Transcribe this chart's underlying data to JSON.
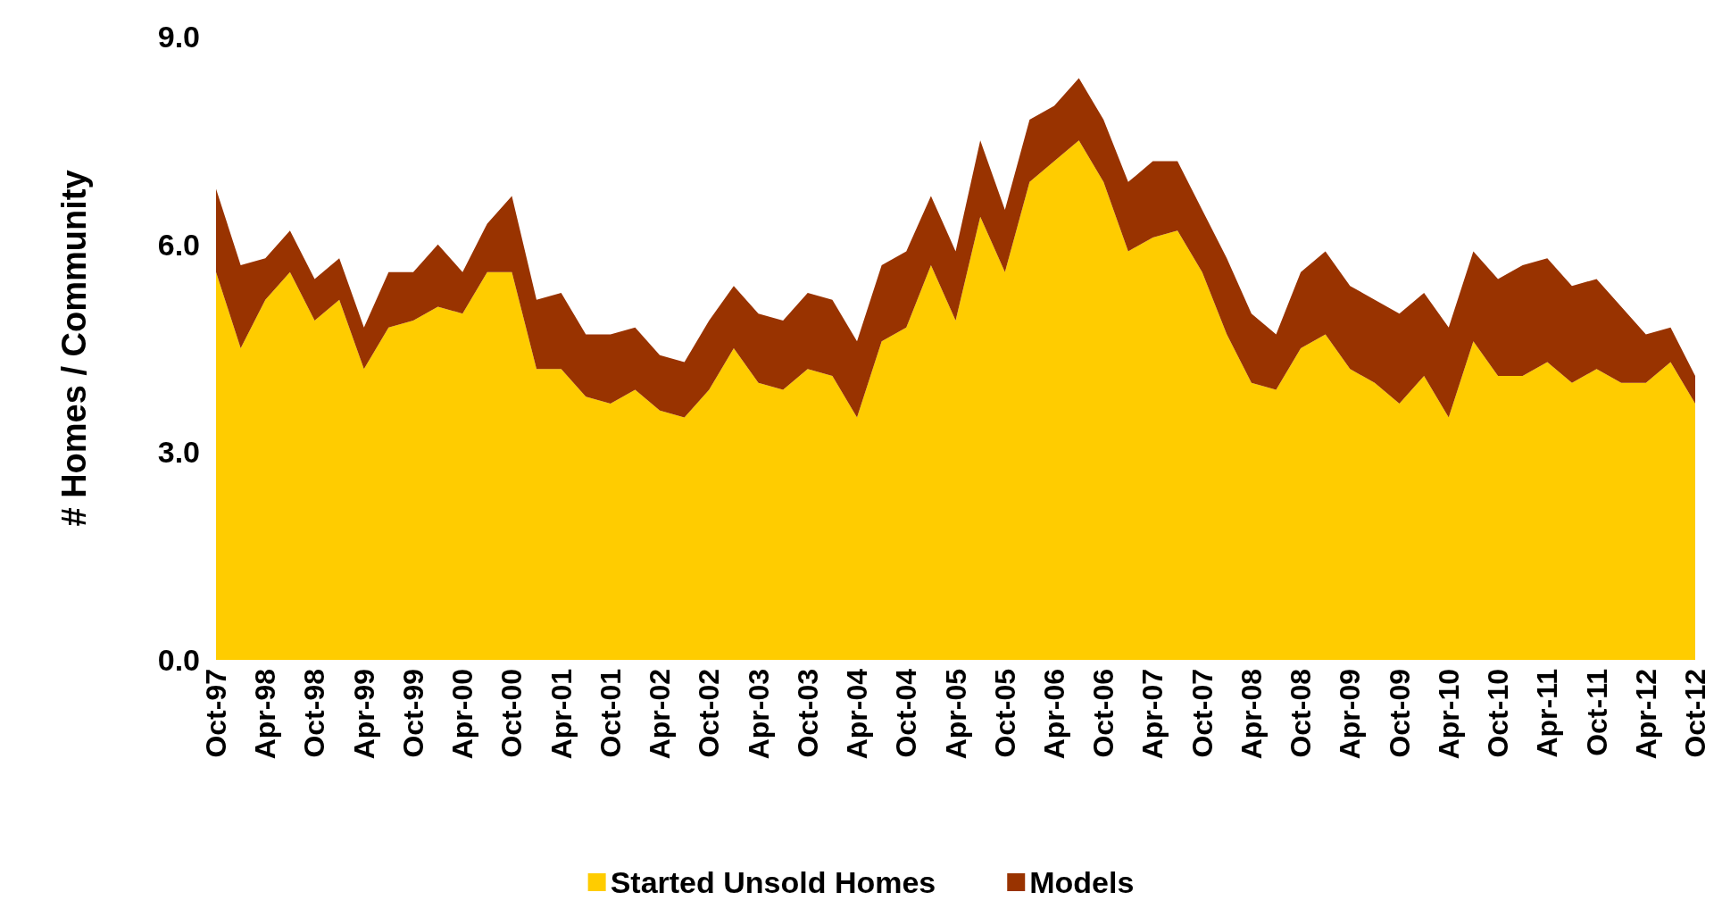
{
  "chart_data": {
    "type": "area",
    "stacked": true,
    "ylabel": "# Homes / Community",
    "ylim": [
      0,
      9
    ],
    "yticks": [
      {
        "value": 0,
        "label": "0.0"
      },
      {
        "value": 3,
        "label": "3.0"
      },
      {
        "value": 6,
        "label": "6.0"
      },
      {
        "value": 9,
        "label": "9.0"
      }
    ],
    "grid": false,
    "legend": "bottom",
    "categories": [
      "Oct-97",
      null,
      "Apr-98",
      null,
      "Oct-98",
      null,
      "Apr-99",
      null,
      "Oct-99",
      null,
      "Apr-00",
      null,
      "Oct-00",
      null,
      "Apr-01",
      null,
      "Oct-01",
      null,
      "Apr-02",
      null,
      "Oct-02",
      null,
      "Apr-03",
      null,
      "Oct-03",
      null,
      "Apr-04",
      null,
      "Oct-04",
      null,
      "Apr-05",
      null,
      "Oct-05",
      null,
      "Apr-06",
      null,
      "Oct-06",
      null,
      "Apr-07",
      null,
      "Oct-07",
      null,
      "Apr-08",
      null,
      "Oct-08",
      null,
      "Apr-09",
      null,
      "Oct-09",
      null,
      "Apr-10",
      null,
      "Oct-10",
      null,
      "Apr-11",
      null,
      "Oct-11",
      null,
      "Apr-12",
      null,
      "Oct-12"
    ],
    "series": [
      {
        "name": "Started Unsold Homes",
        "color": "#ffcc00",
        "values": [
          5.6,
          4.5,
          5.2,
          5.6,
          4.9,
          5.2,
          4.2,
          4.8,
          4.9,
          5.1,
          5.0,
          5.6,
          5.6,
          4.2,
          4.2,
          3.8,
          3.7,
          3.9,
          3.6,
          3.5,
          3.9,
          4.5,
          4.0,
          3.9,
          4.2,
          4.1,
          3.5,
          4.6,
          4.8,
          5.7,
          4.9,
          6.4,
          5.6,
          6.9,
          7.2,
          7.5,
          6.9,
          5.9,
          6.1,
          6.2,
          5.6,
          4.7,
          4.0,
          3.9,
          4.5,
          4.7,
          4.2,
          4.0,
          3.7,
          4.1,
          3.5,
          4.6,
          4.1,
          4.1,
          4.3,
          4.0,
          4.2,
          4.0,
          4.0,
          4.3,
          3.7
        ]
      },
      {
        "name": "Models",
        "color": "#993300",
        "values": [
          1.2,
          1.2,
          0.6,
          0.6,
          0.6,
          0.6,
          0.6,
          0.8,
          0.7,
          0.9,
          0.6,
          0.7,
          1.1,
          1.0,
          1.1,
          0.9,
          1.0,
          0.9,
          0.8,
          0.8,
          1.0,
          0.9,
          1.0,
          1.0,
          1.1,
          1.1,
          1.1,
          1.1,
          1.1,
          1.0,
          1.0,
          1.1,
          0.9,
          0.9,
          0.8,
          0.9,
          0.9,
          1.0,
          1.1,
          1.0,
          0.9,
          1.1,
          1.0,
          0.8,
          1.1,
          1.2,
          1.2,
          1.2,
          1.3,
          1.2,
          1.3,
          1.3,
          1.4,
          1.6,
          1.5,
          1.4,
          1.3,
          1.1,
          0.7,
          0.5,
          0.4
        ]
      }
    ]
  }
}
